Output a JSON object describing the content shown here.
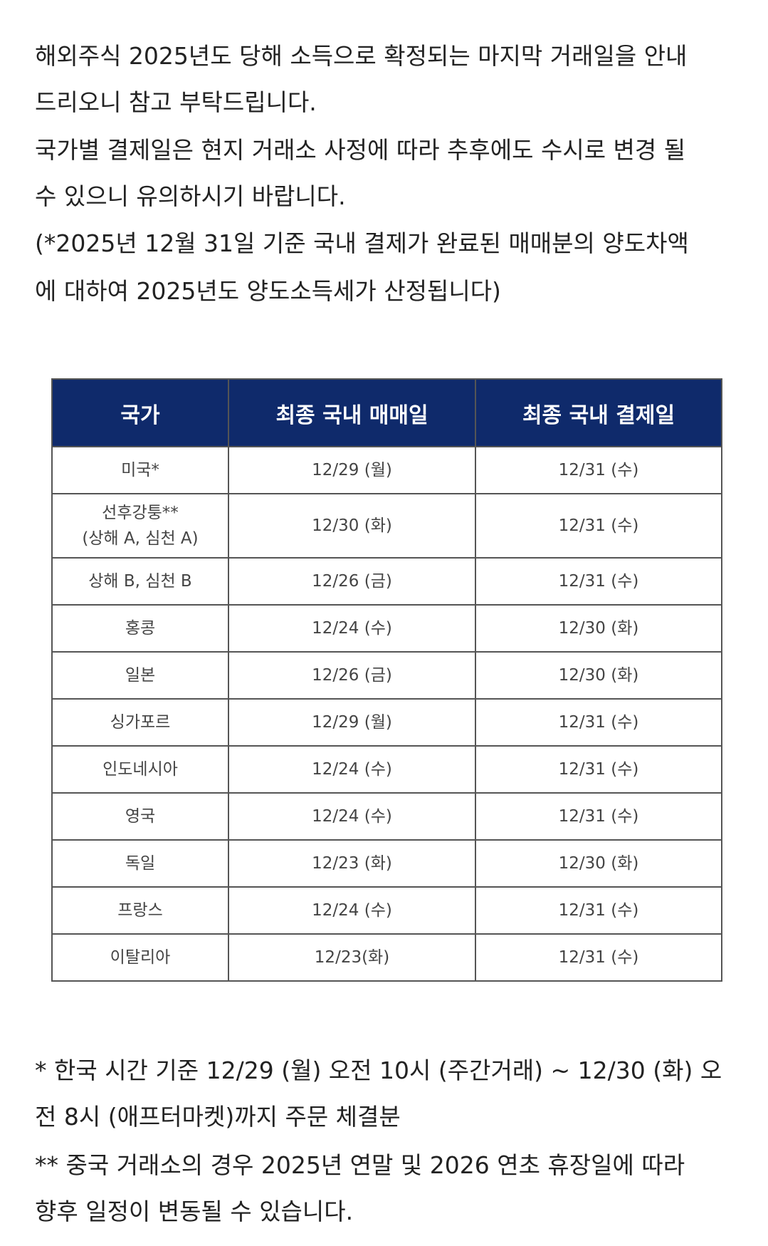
{
  "intro": [
    "해외주식 2025년도 당해 소득으로 확정되는 마지막 거래일을 안내",
    "드리오니 참고 부탁드립니다.",
    "국가별 결제일은 현지 거래소 사정에 따라 추후에도 수시로 변경 될",
    "수 있으니 유의하시기 바랍니다.",
    "(*2025년 12월 31일 기준 국내 결제가 완료된 매매분의 양도차액",
    "에 대하여 2025년도 양도소득세가 산정됩니다)"
  ],
  "table": {
    "headers": [
      "국가",
      "최종 국내 매매일",
      "최종 국내 결제일"
    ],
    "rows": [
      [
        "미국*",
        "12/29 (월)",
        "12/31 (수)"
      ],
      [
        [
          "선후강퉁**",
          "(상해 A, 심천 A)"
        ],
        "12/30 (화)",
        "12/31 (수)"
      ],
      [
        "상해 B, 심천 B",
        "12/26 (금)",
        "12/31 (수)"
      ],
      [
        "홍콩",
        "12/24 (수)",
        "12/30 (화)"
      ],
      [
        "일본",
        "12/26 (금)",
        "12/30 (화)"
      ],
      [
        "싱가포르",
        "12/29 (월)",
        "12/31 (수)"
      ],
      [
        "인도네시아",
        "12/24 (수)",
        "12/31 (수)"
      ],
      [
        "영국",
        "12/24 (수)",
        "12/31 (수)"
      ],
      [
        "독일",
        "12/23 (화)",
        "12/30 (화)"
      ],
      [
        "프랑스",
        "12/24 (수)",
        "12/31 (수)"
      ],
      [
        "이탈리아",
        "12/23(화)",
        "12/31 (수)"
      ]
    ]
  },
  "footnotes": [
    "* 한국 시간 기준 12/29 (월) 오전 10시 (주간거래) ~ 12/30 (화) 오",
    "전 8시 (애프터마켓)까지 주문 체결분",
    "** 중국 거래소의 경우 2025년 연말 및 2026 연초 휴장일에 따라",
    "향후 일정이 변동될 수 있습니다."
  ]
}
